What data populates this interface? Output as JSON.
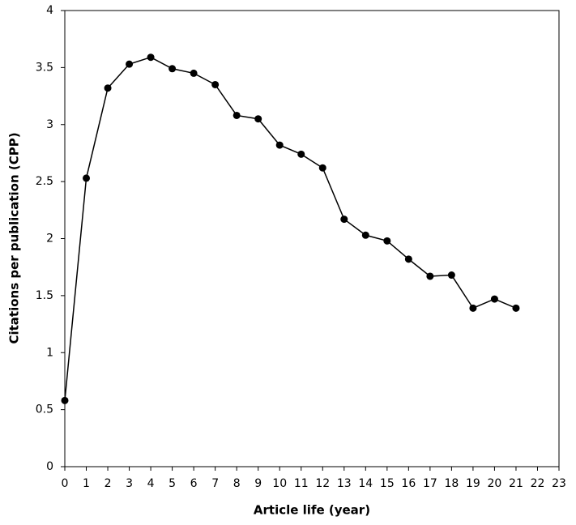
{
  "chart_data": {
    "type": "line",
    "x_label": "Article life (year)",
    "y_label": "Citations per publication (CPP)",
    "x": [
      0,
      1,
      2,
      3,
      4,
      5,
      6,
      7,
      8,
      9,
      10,
      11,
      12,
      13,
      14,
      15,
      16,
      17,
      18,
      19,
      20,
      21
    ],
    "series": [
      {
        "color": "#000000",
        "values": [
          0.58,
          2.53,
          3.32,
          3.53,
          3.59,
          3.49,
          3.45,
          3.35,
          3.08,
          3.05,
          2.82,
          2.74,
          2.62,
          2.17,
          2.03,
          1.98,
          1.82,
          1.67,
          1.68,
          1.39,
          1.47,
          1.39
        ]
      }
    ],
    "xlim": [
      0,
      23
    ],
    "xticks": [
      0,
      1,
      2,
      3,
      4,
      5,
      6,
      7,
      8,
      9,
      10,
      11,
      12,
      13,
      14,
      15,
      16,
      17,
      18,
      19,
      20,
      21,
      22,
      23
    ],
    "ylim": [
      0,
      4
    ],
    "yticks": [
      0,
      0.5,
      1,
      1.5,
      2,
      2.5,
      3,
      3.5,
      4
    ],
    "grid": false
  }
}
